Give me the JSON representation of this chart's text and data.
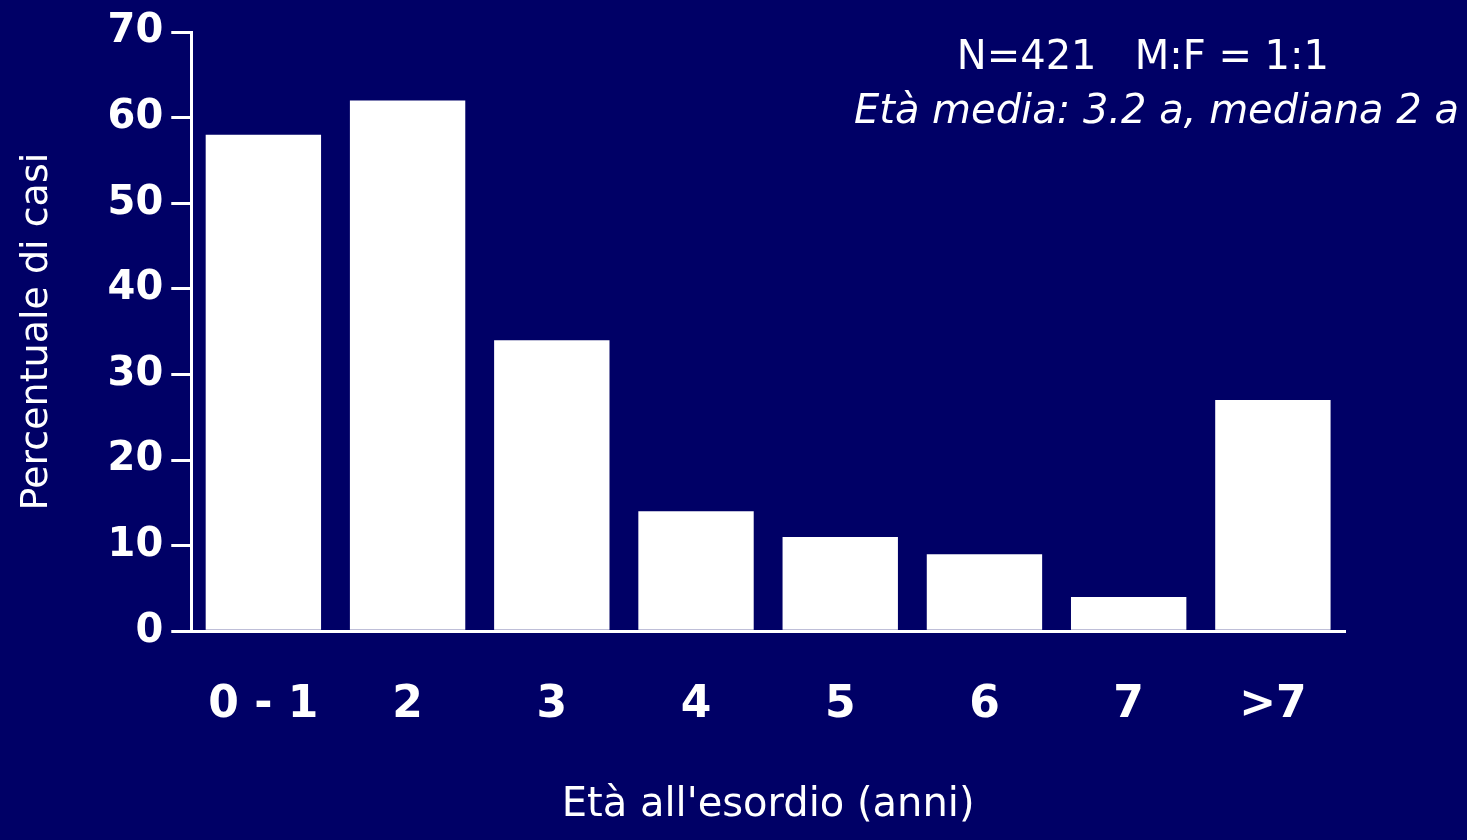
{
  "chart_data": {
    "type": "bar",
    "xlabel": "Età all'esordio (anni)",
    "ylabel": "Percentuale di casi",
    "categories": [
      "0 - 1",
      "2",
      "3",
      "4",
      "5",
      "6",
      "7",
      ">7"
    ],
    "values": [
      58,
      62,
      34,
      14,
      11,
      9,
      4,
      27
    ],
    "color": "#ffffff",
    "ylim": [
      0,
      70
    ],
    "yticks": [
      0,
      10,
      20,
      30,
      40,
      50,
      60,
      70
    ],
    "annotations": [
      "N=421   M:F = 1:1",
      "Età media: 3.2 a, mediana 2 a"
    ]
  }
}
